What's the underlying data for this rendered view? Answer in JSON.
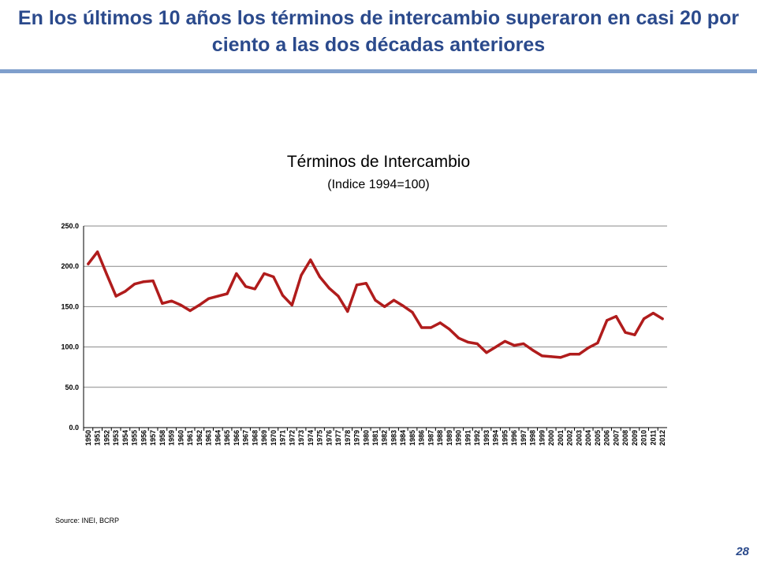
{
  "slide": {
    "title": "En los últimos 10 años los términos de intercambio superaron en casi 20 por ciento a las dos décadas anteriores",
    "source": "Source: INEI, BCRP",
    "page_number": "28"
  },
  "colors": {
    "title": "#2b4a8c",
    "rule": "#7f9fcc",
    "series": "#b01c1c",
    "grid": "#888888"
  },
  "chart_data": {
    "type": "line",
    "title": "Términos de Intercambio",
    "subtitle": "(Indice 1994=100)",
    "xlabel": "",
    "ylabel": "",
    "ylim": [
      0,
      250
    ],
    "yticks": [
      "0.0",
      "50.0",
      "100.0",
      "150.0",
      "200.0",
      "250.0"
    ],
    "grid": true,
    "legend": "none",
    "categories": [
      "1950",
      "1951",
      "1952",
      "1953",
      "1954",
      "1955",
      "1956",
      "1957",
      "1958",
      "1959",
      "1960",
      "1961",
      "1962",
      "1963",
      "1964",
      "1965",
      "1966",
      "1967",
      "1968",
      "1969",
      "1970",
      "1971",
      "1972",
      "1973",
      "1974",
      "1975",
      "1976",
      "1977",
      "1978",
      "1979",
      "1980",
      "1981",
      "1982",
      "1983",
      "1984",
      "1985",
      "1986",
      "1987",
      "1988",
      "1989",
      "1990",
      "1991",
      "1992",
      "1993",
      "1994",
      "1995",
      "1996",
      "1997",
      "1998",
      "1999",
      "2000",
      "2001",
      "2002",
      "2003",
      "2004",
      "2005",
      "2006",
      "2007",
      "2008",
      "2009",
      "2010",
      "2011",
      "2012"
    ],
    "series": [
      {
        "values": [
          203,
          218,
          190,
          163,
          169,
          178,
          181,
          182,
          154,
          157,
          152,
          145,
          152,
          160,
          163,
          166,
          191,
          175,
          172,
          191,
          187,
          164,
          152,
          189,
          208,
          187,
          173,
          163,
          144,
          177,
          179,
          158,
          150,
          158,
          151,
          143,
          124,
          124,
          130,
          122,
          111,
          106,
          104,
          93,
          100,
          107,
          102,
          104,
          96,
          89,
          88,
          87,
          91,
          91,
          99,
          105,
          133,
          138,
          118,
          115,
          135,
          142,
          135
        ]
      }
    ]
  }
}
